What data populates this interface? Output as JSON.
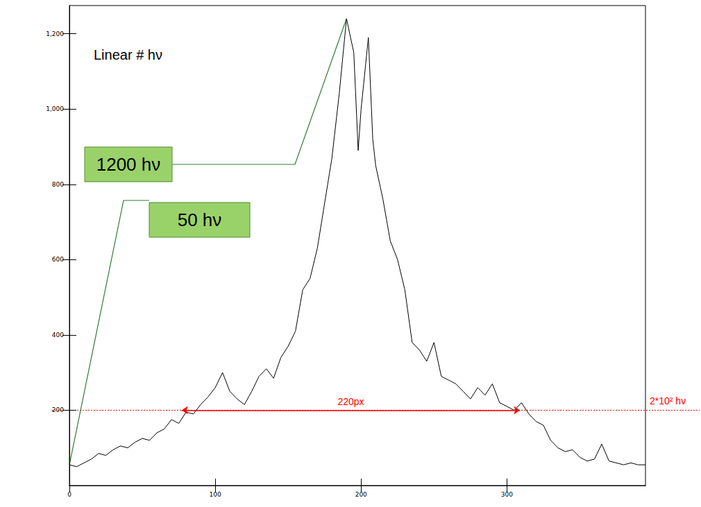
{
  "chart_data": {
    "type": "line",
    "title": "Linear # hν",
    "x": [
      0,
      5,
      10,
      15,
      20,
      25,
      30,
      35,
      40,
      45,
      50,
      55,
      60,
      65,
      70,
      75,
      80,
      85,
      90,
      95,
      100,
      105,
      110,
      115,
      120,
      125,
      130,
      135,
      140,
      145,
      150,
      155,
      160,
      165,
      170,
      175,
      180,
      185,
      190,
      195,
      198,
      200,
      205,
      208,
      210,
      215,
      220,
      225,
      230,
      235,
      240,
      245,
      250,
      255,
      260,
      265,
      270,
      275,
      280,
      285,
      290,
      295,
      300,
      305,
      310,
      315,
      320,
      325,
      330,
      335,
      340,
      345,
      350,
      355,
      360,
      365,
      370,
      375,
      380,
      385,
      390,
      395
    ],
    "values": [
      55,
      50,
      60,
      70,
      85,
      80,
      95,
      105,
      100,
      115,
      125,
      120,
      140,
      150,
      175,
      165,
      195,
      190,
      215,
      235,
      260,
      300,
      250,
      230,
      215,
      250,
      290,
      310,
      285,
      340,
      370,
      410,
      520,
      550,
      630,
      750,
      870,
      1040,
      1240,
      1150,
      890,
      1000,
      1190,
      920,
      850,
      760,
      650,
      600,
      520,
      380,
      360,
      330,
      380,
      290,
      280,
      270,
      250,
      230,
      260,
      240,
      270,
      220,
      210,
      200,
      220,
      190,
      170,
      160,
      120,
      100,
      90,
      95,
      75,
      65,
      70,
      110,
      65,
      60,
      55,
      60,
      55,
      55
    ],
    "color": "#000000",
    "xlim": [
      0,
      395
    ],
    "xticks": [
      0,
      100,
      200,
      300
    ],
    "ylim": [
      0,
      1275
    ],
    "yticks": [
      200,
      400,
      600,
      800,
      1000,
      1200
    ],
    "grid": false,
    "annotations": [
      {
        "text": "1200 hν",
        "x": 190,
        "y": 1240
      },
      {
        "text": "50 hν",
        "x": 0,
        "y": 55
      }
    ],
    "reference_line": {
      "y": 200,
      "label": "2*10² hν",
      "color": "#ff0000"
    },
    "span": {
      "from": 77,
      "to": 309,
      "y": 200,
      "label": "220px",
      "color": "#ff0000"
    }
  }
}
